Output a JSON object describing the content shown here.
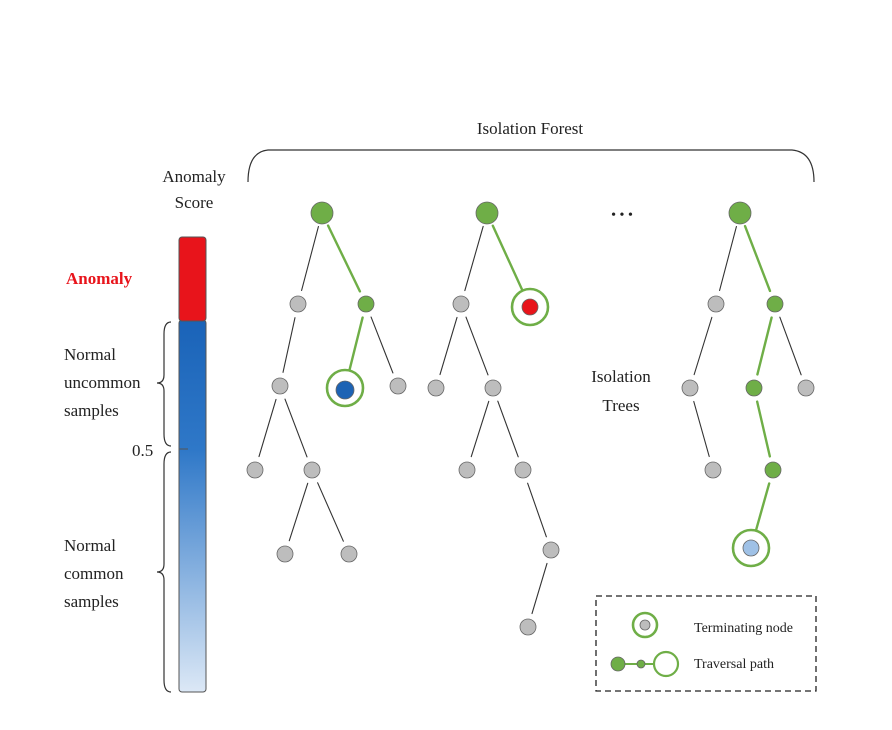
{
  "title": "Isolation Forest",
  "score": {
    "title_line1": "Anomaly",
    "title_line2": "Score",
    "anomaly_label": "Anomaly",
    "threshold": "0.5",
    "uncommon": [
      "Normal",
      "uncommon",
      "samples"
    ],
    "common": [
      "Normal",
      "common",
      "samples"
    ]
  },
  "ellipsis": "• • •",
  "trees_label": [
    "Isolation",
    "Trees"
  ],
  "legend": {
    "terminating": "Terminating node",
    "traversal": "Traversal path"
  },
  "colors": {
    "anomaly_red": "#e8141b",
    "bar_dark_blue": "#1a63b8",
    "bar_light_blue": "#dce8f6",
    "path_green": "#6fae47",
    "node_gray": "#bdbdbd",
    "normal_uncommon_node": "#1d63b4",
    "normal_common_node": "#9fc1e6"
  }
}
